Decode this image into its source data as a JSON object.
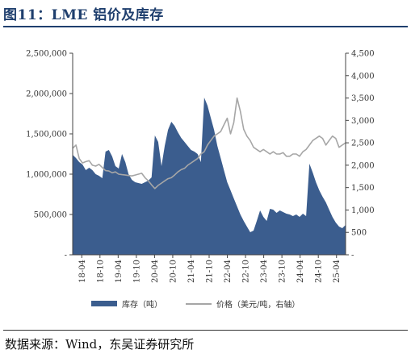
{
  "header": {
    "title": "图11：LME 铝价及库存"
  },
  "footer": {
    "source": "数据来源：Wind，东吴证券研究所"
  },
  "colors": {
    "title": "#1f3f6e",
    "inventory": "#3b5d8e",
    "price": "#a6a6a6"
  },
  "chart_data": {
    "type": "area",
    "x_tick_labels": [
      "18-04",
      "18-10",
      "19-04",
      "19-10",
      "20-04",
      "20-10",
      "21-04",
      "21-10",
      "22-04",
      "22-10",
      "23-04",
      "23-10",
      "24-04",
      "24-10",
      "25-04"
    ],
    "ylim_left": [
      0,
      2500000
    ],
    "yticks_left": [
      "-",
      "500,000",
      "1,000,000",
      "1,500,000",
      "2,000,000",
      "2,500,000"
    ],
    "ylim_right": [
      0,
      4500
    ],
    "yticks_right": [
      "-",
      "500",
      "1,000",
      "1,500",
      "2,000",
      "2,500",
      "3,000",
      "3,500",
      "4,000",
      "4,500"
    ],
    "series": [
      {
        "name": "库存（吨）",
        "kind": "area",
        "axis": "left",
        "values": [
          1240000,
          1200000,
          1150000,
          1120000,
          1050000,
          1080000,
          1050000,
          1000000,
          980000,
          950000,
          1280000,
          1300000,
          1220000,
          1100000,
          1070000,
          1250000,
          1150000,
          1000000,
          930000,
          900000,
          890000,
          880000,
          900000,
          920000,
          960000,
          1480000,
          1400000,
          1100000,
          1350000,
          1550000,
          1650000,
          1600000,
          1520000,
          1450000,
          1400000,
          1350000,
          1300000,
          1280000,
          1250000,
          1150000,
          1950000,
          1850000,
          1700000,
          1550000,
          1350000,
          1200000,
          1050000,
          900000,
          800000,
          700000,
          600000,
          500000,
          420000,
          350000,
          280000,
          300000,
          420000,
          550000,
          470000,
          420000,
          570000,
          560000,
          520000,
          550000,
          530000,
          510000,
          500000,
          480000,
          500000,
          470000,
          510000,
          480000,
          1130000,
          1020000,
          900000,
          800000,
          720000,
          650000,
          560000,
          470000,
          400000,
          350000,
          330000,
          370000
        ]
      },
      {
        "name": "价格（美元/吨，右轴）",
        "kind": "line",
        "axis": "right",
        "values": [
          2380,
          2450,
          2150,
          2050,
          2080,
          2100,
          2000,
          1980,
          2020,
          1950,
          1880,
          1870,
          1830,
          1850,
          1800,
          1790,
          1780,
          1770,
          1760,
          1780,
          1800,
          1820,
          1720,
          1650,
          1560,
          1480,
          1550,
          1600,
          1650,
          1700,
          1720,
          1780,
          1850,
          1900,
          1930,
          2000,
          2050,
          2100,
          2150,
          2250,
          2300,
          2450,
          2550,
          2650,
          2700,
          2750,
          2900,
          3050,
          2700,
          2950,
          3500,
          3200,
          2800,
          2650,
          2550,
          2400,
          2350,
          2300,
          2350,
          2300,
          2250,
          2300,
          2250,
          2250,
          2280,
          2200,
          2200,
          2250,
          2250,
          2200,
          2300,
          2350,
          2450,
          2550,
          2600,
          2650,
          2600,
          2450,
          2550,
          2650,
          2600,
          2400,
          2450,
          2500
        ]
      }
    ],
    "legend_position": "bottom",
    "grid": false
  }
}
